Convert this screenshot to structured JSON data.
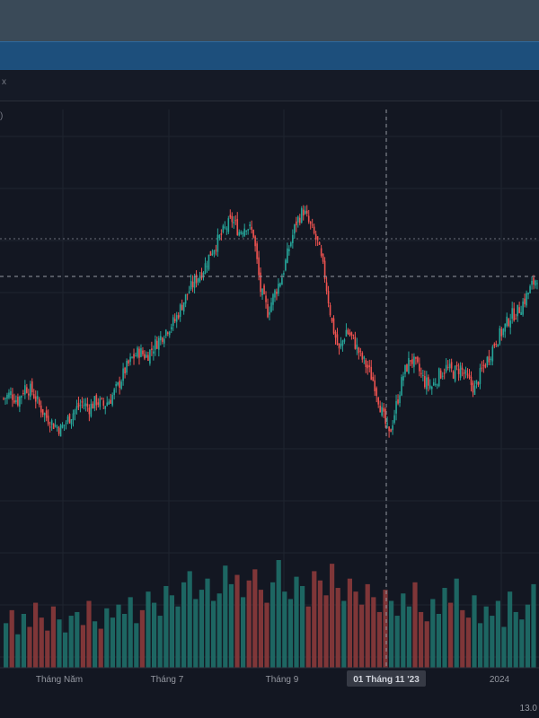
{
  "toolbar": {
    "top_mark": "x",
    "side_glyph": ")"
  },
  "chart_data": {
    "type": "candlestick",
    "x_tick_labels": [
      "Tháng Năm",
      "Tháng 7",
      "Tháng 9",
      "01 Tháng 11 '23",
      "2024"
    ],
    "crosshair_date_label": "01 Tháng 11 '23",
    "bottom_right_label": "13.0",
    "colors": {
      "up": "#26a69a",
      "down": "#ef5350",
      "background": "#131722",
      "grid": "#1f2430",
      "crosshair": "#9598a1"
    },
    "price_series": [
      {
        "i": 0,
        "c": 66
      },
      {
        "i": 4,
        "c": 68
      },
      {
        "i": 8,
        "c": 65
      },
      {
        "i": 12,
        "c": 71
      },
      {
        "i": 16,
        "c": 69
      },
      {
        "i": 20,
        "c": 63
      },
      {
        "i": 24,
        "c": 58
      },
      {
        "i": 28,
        "c": 55
      },
      {
        "i": 32,
        "c": 53
      },
      {
        "i": 36,
        "c": 57
      },
      {
        "i": 40,
        "c": 61
      },
      {
        "i": 44,
        "c": 64
      },
      {
        "i": 48,
        "c": 62
      },
      {
        "i": 52,
        "c": 65
      },
      {
        "i": 56,
        "c": 63
      },
      {
        "i": 60,
        "c": 66
      },
      {
        "i": 64,
        "c": 71
      },
      {
        "i": 68,
        "c": 78
      },
      {
        "i": 72,
        "c": 83
      },
      {
        "i": 76,
        "c": 86
      },
      {
        "i": 80,
        "c": 84
      },
      {
        "i": 84,
        "c": 88
      },
      {
        "i": 88,
        "c": 92
      },
      {
        "i": 92,
        "c": 96
      },
      {
        "i": 96,
        "c": 99
      },
      {
        "i": 100,
        "c": 106
      },
      {
        "i": 104,
        "c": 112
      },
      {
        "i": 108,
        "c": 117
      },
      {
        "i": 112,
        "c": 121
      },
      {
        "i": 116,
        "c": 128
      },
      {
        "i": 120,
        "c": 133
      },
      {
        "i": 124,
        "c": 138
      },
      {
        "i": 128,
        "c": 142
      },
      {
        "i": 132,
        "c": 137
      },
      {
        "i": 136,
        "c": 140
      },
      {
        "i": 140,
        "c": 136
      },
      {
        "i": 144,
        "c": 112
      },
      {
        "i": 148,
        "c": 103
      },
      {
        "i": 152,
        "c": 111
      },
      {
        "i": 156,
        "c": 118
      },
      {
        "i": 160,
        "c": 130
      },
      {
        "i": 164,
        "c": 141
      },
      {
        "i": 168,
        "c": 146
      },
      {
        "i": 172,
        "c": 139
      },
      {
        "i": 176,
        "c": 132
      },
      {
        "i": 180,
        "c": 118
      },
      {
        "i": 184,
        "c": 98
      },
      {
        "i": 188,
        "c": 86
      },
      {
        "i": 192,
        "c": 95
      },
      {
        "i": 196,
        "c": 91
      },
      {
        "i": 200,
        "c": 84
      },
      {
        "i": 204,
        "c": 79
      },
      {
        "i": 208,
        "c": 72
      },
      {
        "i": 212,
        "c": 60
      },
      {
        "i": 216,
        "c": 50
      },
      {
        "i": 220,
        "c": 63
      },
      {
        "i": 224,
        "c": 76
      },
      {
        "i": 228,
        "c": 83
      },
      {
        "i": 232,
        "c": 79
      },
      {
        "i": 236,
        "c": 73
      },
      {
        "i": 240,
        "c": 71
      },
      {
        "i": 244,
        "c": 76
      },
      {
        "i": 248,
        "c": 79
      },
      {
        "i": 252,
        "c": 77
      },
      {
        "i": 256,
        "c": 79
      },
      {
        "i": 260,
        "c": 74
      },
      {
        "i": 264,
        "c": 70
      },
      {
        "i": 268,
        "c": 78
      },
      {
        "i": 272,
        "c": 84
      },
      {
        "i": 276,
        "c": 91
      },
      {
        "i": 280,
        "c": 95
      },
      {
        "i": 284,
        "c": 101
      },
      {
        "i": 288,
        "c": 103
      },
      {
        "i": 292,
        "c": 108
      },
      {
        "i": 296,
        "c": 114
      },
      {
        "i": 299,
        "c": 118
      }
    ],
    "volume_series": [
      24,
      31,
      18,
      29,
      22,
      35,
      27,
      20,
      33,
      26,
      19,
      28,
      30,
      23,
      36,
      25,
      21,
      32,
      27,
      34,
      29,
      38,
      24,
      31,
      41,
      35,
      28,
      44,
      39,
      33,
      46,
      52,
      37,
      42,
      48,
      36,
      40,
      55,
      45,
      50,
      38,
      47,
      53,
      42,
      35,
      46,
      58,
      41,
      37,
      49,
      44,
      33,
      52,
      47,
      39,
      56,
      43,
      36,
      48,
      41,
      34,
      45,
      38,
      30,
      42,
      36,
      28,
      40,
      33,
      46,
      30,
      25,
      37,
      29,
      43,
      35,
      48,
      31,
      27,
      39,
      24,
      33,
      28,
      36,
      22,
      41,
      30,
      26,
      34,
      45
    ]
  }
}
